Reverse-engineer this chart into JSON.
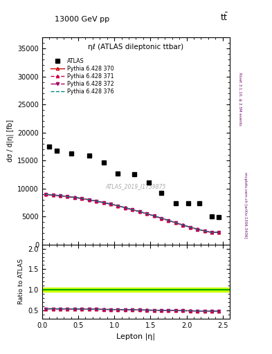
{
  "title_top": "13000 GeV pp",
  "title_top_right": "tt̅",
  "plot_title": "ηℓ (ATLAS dileptonic ttbar)",
  "watermark": "ATLAS_2019_I1759875",
  "ylabel_main": "dσ / d|η| [fb]",
  "ylabel_ratio": "Ratio to ATLAS",
  "xlabel": "Lepton |η|",
  "right_label_top": "Rivet 3.1.10, ≥ 2.5M events",
  "right_label_bottom": "mcplots.cern.ch [arXiv:1306.3436]",
  "atlas_x": [
    0.1,
    0.2,
    0.4,
    0.65,
    0.85,
    1.05,
    1.275,
    1.475,
    1.65,
    1.85,
    2.025,
    2.175,
    2.35,
    2.45
  ],
  "atlas_y": [
    17500,
    16700,
    16200,
    15900,
    14700,
    12700,
    12600,
    11100,
    9200,
    7400,
    7400,
    7350,
    5000,
    4900
  ],
  "py_x": [
    0.05,
    0.15,
    0.25,
    0.35,
    0.45,
    0.55,
    0.65,
    0.75,
    0.85,
    0.95,
    1.05,
    1.15,
    1.25,
    1.35,
    1.45,
    1.55,
    1.65,
    1.75,
    1.85,
    1.95,
    2.05,
    2.15,
    2.25,
    2.35,
    2.45
  ],
  "py370_y": [
    8950,
    8850,
    8720,
    8580,
    8420,
    8230,
    8000,
    7760,
    7500,
    7230,
    6920,
    6580,
    6230,
    5880,
    5510,
    5120,
    4710,
    4310,
    3890,
    3480,
    3100,
    2740,
    2420,
    2170,
    2200
  ],
  "ratio_370_y": [
    0.54,
    0.54,
    0.538,
    0.536,
    0.535,
    0.533,
    0.53,
    0.528,
    0.525,
    0.522,
    0.52,
    0.517,
    0.514,
    0.511,
    0.508,
    0.505,
    0.502,
    0.499,
    0.496,
    0.493,
    0.49,
    0.487,
    0.484,
    0.481,
    0.478
  ],
  "xlim": [
    0.0,
    2.6
  ],
  "ylim_main": [
    0,
    37000
  ],
  "ylim_ratio": [
    0.3,
    2.1
  ],
  "py370_color": "#cc0000",
  "py371_color": "#cc0044",
  "py372_color": "#aa0066",
  "py376_color": "#008888",
  "ratio_band_hi": 1.05,
  "ratio_band_lo": 0.95,
  "ratio_band_color": "#ccff00",
  "ratio_line_color": "#00aa00",
  "main_yticks": [
    0,
    5000,
    10000,
    15000,
    20000,
    25000,
    30000,
    35000
  ],
  "ratio_yticks": [
    0.5,
    1.0,
    1.5,
    2.0
  ]
}
